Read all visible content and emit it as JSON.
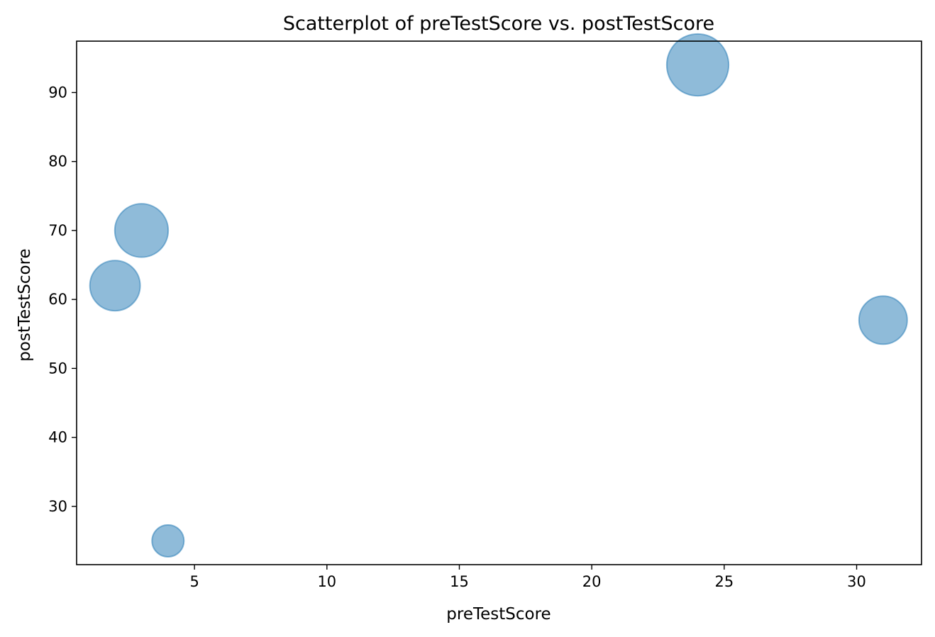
{
  "chart_data": {
    "type": "scatter",
    "title": "Scatterplot of preTestScore vs. postTestScore",
    "xlabel": "preTestScore",
    "ylabel": "postTestScore",
    "xlim": [
      0.55,
      32.45
    ],
    "ylim": [
      21.55,
      97.45
    ],
    "xticks": [
      5,
      10,
      15,
      20,
      25,
      30
    ],
    "yticks": [
      30,
      40,
      50,
      60,
      70,
      80,
      90
    ],
    "grid": false,
    "legend": "none",
    "marker_color": "#1f77b4",
    "marker_alpha": 0.5,
    "points": [
      {
        "x": 4,
        "y": 25,
        "size": 25
      },
      {
        "x": 24,
        "y": 94,
        "size": 94
      },
      {
        "x": 31,
        "y": 57,
        "size": 57
      },
      {
        "x": 2,
        "y": 62,
        "size": 62
      },
      {
        "x": 3,
        "y": 70,
        "size": 70
      }
    ]
  }
}
